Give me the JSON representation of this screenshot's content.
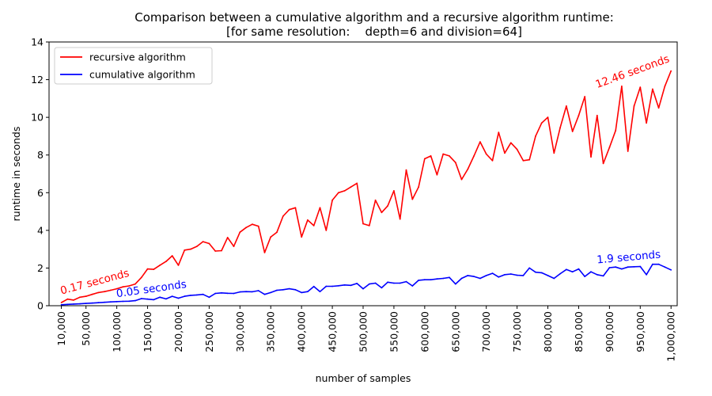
{
  "chart_data": {
    "type": "line",
    "title": "Comparison between a cumulative algorithm and a recursive algorithm runtime:",
    "subtitle": "[for same resolution:    depth=6 and division=64]",
    "xlabel": "number of samples",
    "ylabel": "runtime in seconds",
    "xlim": [
      -10000,
      1010000
    ],
    "ylim": [
      0,
      14
    ],
    "yticks": [
      0,
      2,
      4,
      6,
      8,
      10,
      12,
      14
    ],
    "ytick_labels": [
      "0",
      "2",
      "4",
      "6",
      "8",
      "10",
      "12",
      "14"
    ],
    "xticks": [
      10000,
      50000,
      100000,
      150000,
      200000,
      250000,
      300000,
      350000,
      400000,
      450000,
      500000,
      550000,
      600000,
      650000,
      700000,
      750000,
      800000,
      850000,
      900000,
      950000,
      1000000
    ],
    "xtick_labels": [
      "10,000",
      "50,000",
      "100,000",
      "150,000",
      "200,000",
      "250,000",
      "300,000",
      "350,000",
      "400,000",
      "450,000",
      "500,000",
      "550,000",
      "600,000",
      "650,000",
      "700,000",
      "750,000",
      "800,000",
      "850,000",
      "900,000",
      "950,000",
      "1,000,000"
    ],
    "grid": false,
    "legend_position": "top-left",
    "series": [
      {
        "name": "recursive algorithm",
        "color": "#ff0000",
        "x": [
          10000,
          20000,
          30000,
          40000,
          50000,
          60000,
          70000,
          80000,
          90000,
          100000,
          110000,
          120000,
          130000,
          140000,
          150000,
          160000,
          170000,
          180000,
          190000,
          200000,
          210000,
          220000,
          230000,
          240000,
          250000,
          260000,
          270000,
          280000,
          290000,
          300000,
          310000,
          320000,
          330000,
          340000,
          350000,
          360000,
          370000,
          380000,
          390000,
          400000,
          410000,
          420000,
          430000,
          440000,
          450000,
          460000,
          470000,
          480000,
          490000,
          500000,
          510000,
          520000,
          530000,
          540000,
          550000,
          560000,
          570000,
          580000,
          590000,
          600000,
          610000,
          620000,
          630000,
          640000,
          650000,
          660000,
          670000,
          680000,
          690000,
          700000,
          710000,
          720000,
          730000,
          740000,
          750000,
          760000,
          770000,
          780000,
          790000,
          800000,
          810000,
          820000,
          830000,
          840000,
          850000,
          860000,
          870000,
          880000,
          890000,
          900000,
          910000,
          920000,
          930000,
          940000,
          950000,
          960000,
          970000,
          980000,
          990000,
          1000000
        ],
        "y": [
          0.17,
          0.35,
          0.3,
          0.45,
          0.5,
          0.6,
          0.7,
          0.75,
          0.82,
          0.9,
          1.0,
          1.05,
          1.15,
          1.5,
          1.95,
          1.93,
          2.15,
          2.35,
          2.65,
          2.15,
          2.95,
          3.0,
          3.15,
          3.4,
          3.3,
          2.9,
          2.92,
          3.62,
          3.15,
          3.9,
          4.15,
          4.32,
          4.22,
          2.82,
          3.65,
          3.9,
          4.75,
          5.1,
          5.2,
          3.65,
          4.55,
          4.25,
          5.2,
          4.0,
          5.6,
          6.0,
          6.1,
          6.3,
          6.5,
          4.35,
          4.25,
          5.6,
          4.95,
          5.3,
          6.1,
          4.6,
          7.2,
          5.65,
          6.3,
          7.8,
          7.95,
          6.95,
          8.05,
          7.95,
          7.6,
          6.7,
          7.25,
          7.95,
          8.7,
          8.05,
          7.7,
          9.2,
          8.1,
          8.65,
          8.3,
          7.7,
          7.75,
          9.0,
          9.7,
          10.0,
          8.1,
          9.45,
          10.6,
          9.25,
          10.1,
          11.1,
          7.9,
          10.1,
          7.55,
          8.4,
          9.3,
          11.65,
          8.2,
          10.6,
          11.6,
          9.7,
          11.5,
          10.5,
          11.65,
          12.46
        ]
      },
      {
        "name": "cumulative algorithm",
        "color": "#0000ff",
        "x": [
          10000,
          20000,
          30000,
          40000,
          50000,
          60000,
          70000,
          80000,
          90000,
          100000,
          110000,
          120000,
          130000,
          140000,
          150000,
          160000,
          170000,
          180000,
          190000,
          200000,
          210000,
          220000,
          230000,
          240000,
          250000,
          260000,
          270000,
          280000,
          290000,
          300000,
          310000,
          320000,
          330000,
          340000,
          350000,
          360000,
          370000,
          380000,
          390000,
          400000,
          410000,
          420000,
          430000,
          440000,
          450000,
          460000,
          470000,
          480000,
          490000,
          500000,
          510000,
          520000,
          530000,
          540000,
          550000,
          560000,
          570000,
          580000,
          590000,
          600000,
          610000,
          620000,
          630000,
          640000,
          650000,
          660000,
          670000,
          680000,
          690000,
          700000,
          710000,
          720000,
          730000,
          740000,
          750000,
          760000,
          770000,
          780000,
          790000,
          800000,
          810000,
          820000,
          830000,
          840000,
          850000,
          860000,
          870000,
          880000,
          890000,
          900000,
          910000,
          920000,
          930000,
          940000,
          950000,
          960000,
          970000,
          980000,
          990000,
          1000000
        ],
        "y": [
          0.05,
          0.07,
          0.09,
          0.1,
          0.12,
          0.14,
          0.16,
          0.18,
          0.2,
          0.22,
          0.23,
          0.24,
          0.27,
          0.38,
          0.35,
          0.32,
          0.45,
          0.36,
          0.5,
          0.4,
          0.5,
          0.55,
          0.57,
          0.6,
          0.45,
          0.65,
          0.68,
          0.66,
          0.65,
          0.73,
          0.75,
          0.74,
          0.8,
          0.6,
          0.7,
          0.82,
          0.85,
          0.9,
          0.85,
          0.7,
          0.75,
          1.02,
          0.75,
          1.03,
          1.03,
          1.06,
          1.1,
          1.08,
          1.18,
          0.9,
          1.15,
          1.2,
          0.95,
          1.25,
          1.2,
          1.2,
          1.28,
          1.05,
          1.35,
          1.38,
          1.38,
          1.42,
          1.45,
          1.5,
          1.15,
          1.45,
          1.6,
          1.55,
          1.45,
          1.6,
          1.72,
          1.52,
          1.65,
          1.68,
          1.62,
          1.6,
          2.0,
          1.78,
          1.75,
          1.6,
          1.45,
          1.7,
          1.92,
          1.8,
          1.95,
          1.55,
          1.8,
          1.65,
          1.58,
          2.02,
          2.05,
          1.95,
          2.05,
          2.07,
          2.08,
          1.65,
          2.2,
          2.2,
          2.05,
          1.9
        ]
      }
    ],
    "annotations": [
      {
        "text": "0.17 seconds",
        "color": "#ff0000",
        "x": 10000,
        "y": 0.6,
        "angle": -15
      },
      {
        "text": "0.05 seconds",
        "color": "#0000ff",
        "x": 100000,
        "y": 0.45,
        "angle": -8
      },
      {
        "text": "1.9 seconds",
        "color": "#0000ff",
        "x": 880000,
        "y": 2.25,
        "angle": -5
      },
      {
        "text": "12.46 seconds",
        "color": "#ff0000",
        "x": 880000,
        "y": 11.55,
        "angle": -20
      }
    ]
  }
}
